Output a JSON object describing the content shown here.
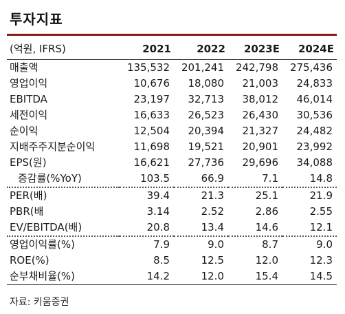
{
  "title": "투자지표",
  "table": {
    "header_label": "(억원, IFRS)",
    "years": [
      "2021",
      "2022",
      "2023E",
      "2024E"
    ],
    "rows": [
      {
        "label": "매출액",
        "values": [
          "135,532",
          "201,241",
          "242,798",
          "275,436"
        ]
      },
      {
        "label": "영업이익",
        "values": [
          "10,676",
          "18,080",
          "21,003",
          "24,833"
        ]
      },
      {
        "label": "EBITDA",
        "values": [
          "23,197",
          "32,713",
          "38,012",
          "46,014"
        ]
      },
      {
        "label": "세전이익",
        "values": [
          "16,633",
          "26,523",
          "26,430",
          "30,536"
        ]
      },
      {
        "label": "순이익",
        "values": [
          "12,504",
          "20,394",
          "21,327",
          "24,482"
        ]
      },
      {
        "label": "지배주주지분순이익",
        "values": [
          "11,698",
          "19,521",
          "20,901",
          "23,992"
        ]
      },
      {
        "label": "EPS(원)",
        "values": [
          "16,621",
          "27,736",
          "29,696",
          "34,088"
        ]
      },
      {
        "label": "증감률(%YoY)",
        "values": [
          "103.5",
          "66.9",
          "7.1",
          "14.8"
        ]
      },
      {
        "label": "PER(배)",
        "values": [
          "39.4",
          "21.3",
          "25.1",
          "21.9"
        ]
      },
      {
        "label": "PBR(배",
        "values": [
          "3.14",
          "2.52",
          "2.86",
          "2.55"
        ]
      },
      {
        "label": "EV/EBITDA(배)",
        "values": [
          "20.8",
          "13.4",
          "14.6",
          "12.1"
        ]
      },
      {
        "label": "영업이익률(%)",
        "values": [
          "7.9",
          "9.0",
          "8.7",
          "9.0"
        ]
      },
      {
        "label": "ROE(%)",
        "values": [
          "8.5",
          "12.5",
          "12.0",
          "12.3"
        ]
      },
      {
        "label": "순부채비율(%)",
        "values": [
          "14.2",
          "12.0",
          "15.4",
          "14.5"
        ]
      }
    ]
  },
  "source": "자료: 키움증권"
}
